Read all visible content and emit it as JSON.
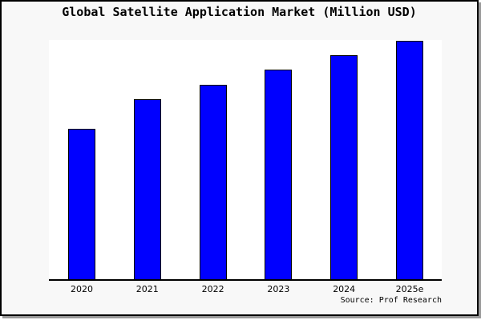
{
  "window": {
    "background_color": "#f8f8f8",
    "plot_background_color": "#ffffff",
    "border_color": "#000000",
    "shadow_color": "#9a9a9a"
  },
  "header": {
    "title": "Global Satellite Application Market (Million USD)"
  },
  "footer": {
    "source": "Source: Prof Research"
  },
  "chart_data": {
    "type": "bar",
    "title": "Global Satellite Application Market (Million USD)",
    "categories": [
      "2020",
      "2021",
      "2022",
      "2023",
      "2024",
      "2025e"
    ],
    "values": [
      62.8,
      75.1,
      81.4,
      87.7,
      93.7,
      99.7
    ],
    "value_note": "y-axis has no ticks or labels; values are estimated relative bar heights as % of plot height",
    "xlabel": "",
    "ylabel": "",
    "ylim": [
      0,
      100
    ],
    "grid": false,
    "legend": false,
    "bar_color": "#0000ff",
    "bar_edge_color": "#000000",
    "source": "Source: Prof Research"
  }
}
